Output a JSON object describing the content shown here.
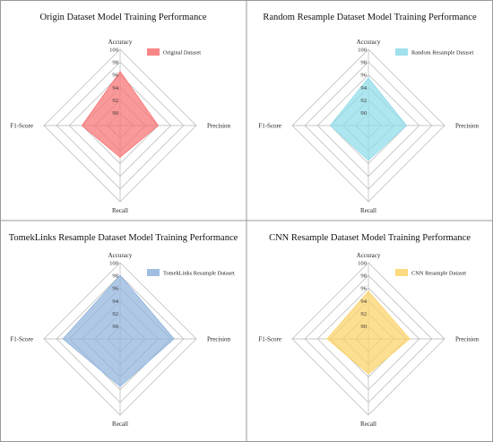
{
  "chart_data": [
    {
      "type": "radar",
      "title": "Origin Dataset Model Training Performance",
      "axes": [
        "Accuracy",
        "Precision",
        "Recall",
        "F1-Score"
      ],
      "radial_range": [
        88,
        100
      ],
      "ticks": [
        90,
        92,
        94,
        96,
        98,
        100
      ],
      "grid": true,
      "legend_position": "top-right",
      "series": [
        {
          "name": "Original Dataset",
          "values": [
            96.5,
            94.0,
            93.0,
            94.0
          ],
          "color": "#f87171"
        }
      ]
    },
    {
      "type": "radar",
      "title": "Random Resample Dataset Model Training Performance",
      "axes": [
        "Accuracy",
        "Precision",
        "Recall",
        "F1-Score"
      ],
      "radial_range": [
        88,
        100
      ],
      "ticks": [
        90,
        92,
        94,
        96,
        98,
        100
      ],
      "grid": true,
      "legend_position": "top-right",
      "series": [
        {
          "name": "Random Resample Dataset",
          "values": [
            95.5,
            94.0,
            93.5,
            94.0
          ],
          "color": "#8fdcea"
        }
      ]
    },
    {
      "type": "radar",
      "title": "TomekLinks Resample Dataset Model Training Performance",
      "axes": [
        "Accuracy",
        "Precision",
        "Recall",
        "F1-Score"
      ],
      "radial_range": [
        88,
        100
      ],
      "ticks": [
        90,
        92,
        94,
        96,
        98,
        100
      ],
      "grid": true,
      "legend_position": "top-right",
      "series": [
        {
          "name": "TomekLinks Resample Dataset",
          "values": [
            98.0,
            96.5,
            95.5,
            97.0
          ],
          "color": "#8fb3dc"
        }
      ]
    },
    {
      "type": "radar",
      "title": "CNN Resample Dataset Model Training Performance",
      "axes": [
        "Accuracy",
        "Precision",
        "Recall",
        "F1-Score"
      ],
      "radial_range": [
        88,
        100
      ],
      "ticks": [
        90,
        92,
        94,
        96,
        98,
        100
      ],
      "grid": true,
      "legend_position": "top-right",
      "series": [
        {
          "name": "CNN Resample Dataset",
          "values": [
            95.5,
            94.5,
            93.5,
            94.5
          ],
          "color": "#fcd366"
        }
      ]
    }
  ]
}
